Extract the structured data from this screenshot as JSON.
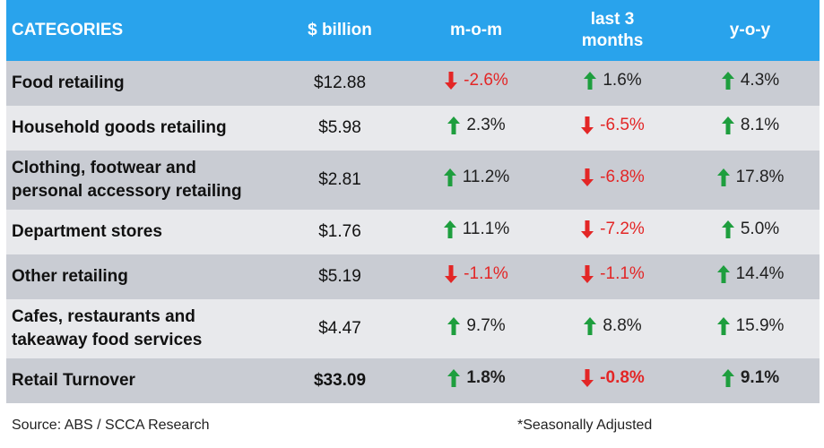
{
  "chart_data": {
    "type": "table",
    "columns": [
      "CATEGORIES",
      "$ billion",
      "m-o-m",
      "last 3 months",
      "y-o-y"
    ],
    "rows": [
      {
        "category": [
          "Food retailing"
        ],
        "value": "$12.88",
        "mom": "-2.6%",
        "last3": "1.6%",
        "yoy": "4.3%",
        "shade": "dark",
        "total": false
      },
      {
        "category": [
          "Household goods retailing"
        ],
        "value": "$5.98",
        "mom": "2.3%",
        "last3": "-6.5%",
        "yoy": "8.1%",
        "shade": "light",
        "total": false
      },
      {
        "category": [
          "Clothing, footwear and",
          "personal accessory retailing"
        ],
        "value": "$2.81",
        "mom": "11.2%",
        "last3": "-6.8%",
        "yoy": "17.8%",
        "shade": "dark",
        "total": false
      },
      {
        "category": [
          "Department stores"
        ],
        "value": "$1.76",
        "mom": "11.1%",
        "last3": "-7.2%",
        "yoy": "5.0%",
        "shade": "light",
        "total": false
      },
      {
        "category": [
          "Other retailing"
        ],
        "value": "$5.19",
        "mom": "-1.1%",
        "last3": "-1.1%",
        "yoy": "14.4%",
        "shade": "dark",
        "total": false
      },
      {
        "category": [
          "Cafes, restaurants and",
          "takeaway food services"
        ],
        "value": "$4.47",
        "mom": "9.7%",
        "last3": "8.8%",
        "yoy": "15.9%",
        "shade": "light",
        "total": false
      },
      {
        "category": [
          "Retail Turnover"
        ],
        "value": "$33.09",
        "mom": "1.8%",
        "last3": "-0.8%",
        "yoy": "9.1%",
        "shade": "dark",
        "total": true
      }
    ]
  },
  "header": {
    "col0": "CATEGORIES",
    "col1": "$ billion",
    "col2": "m-o-m",
    "col3_line1": "last 3",
    "col3_line2": "months",
    "col4": "y-o-y"
  },
  "footer": {
    "source": "Source: ABS / SCCA Research",
    "note": "*Seasonally Adjusted"
  },
  "colors": {
    "header_bg": "#29a3ec",
    "up_arrow": "#1e9e3e",
    "down_arrow": "#e32626",
    "row_dark": "#c9ccd3",
    "row_light": "#e8e9ec"
  },
  "icons": {
    "up": "arrow-up-icon",
    "down": "arrow-down-icon"
  }
}
